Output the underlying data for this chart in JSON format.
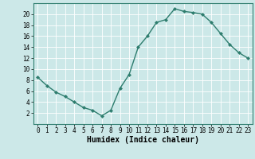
{
  "x": [
    0,
    1,
    2,
    3,
    4,
    5,
    6,
    7,
    8,
    9,
    10,
    11,
    12,
    13,
    14,
    15,
    16,
    17,
    18,
    19,
    20,
    21,
    22,
    23
  ],
  "y": [
    8.5,
    7,
    5.8,
    5,
    4,
    3,
    2.5,
    1.5,
    2.5,
    6.5,
    9,
    14,
    16,
    18.5,
    19,
    21,
    20.5,
    20.3,
    20,
    18.5,
    16.5,
    14.5,
    13,
    12
  ],
  "line_color": "#2e7d6e",
  "marker": "D",
  "marker_size": 2.0,
  "line_width": 1.0,
  "bg_color": "#cce8e8",
  "grid_color": "#ffffff",
  "xlabel": "Humidex (Indice chaleur)",
  "xlabel_fontsize": 7,
  "xlabel_fontweight": "bold",
  "ylim": [
    0,
    22
  ],
  "xlim": [
    -0.5,
    23.5
  ],
  "yticks": [
    2,
    4,
    6,
    8,
    10,
    12,
    14,
    16,
    18,
    20
  ],
  "xticks": [
    0,
    1,
    2,
    3,
    4,
    5,
    6,
    7,
    8,
    9,
    10,
    11,
    12,
    13,
    14,
    15,
    16,
    17,
    18,
    19,
    20,
    21,
    22,
    23
  ],
  "tick_fontsize": 5.5,
  "spine_color": "#2e7d6e"
}
